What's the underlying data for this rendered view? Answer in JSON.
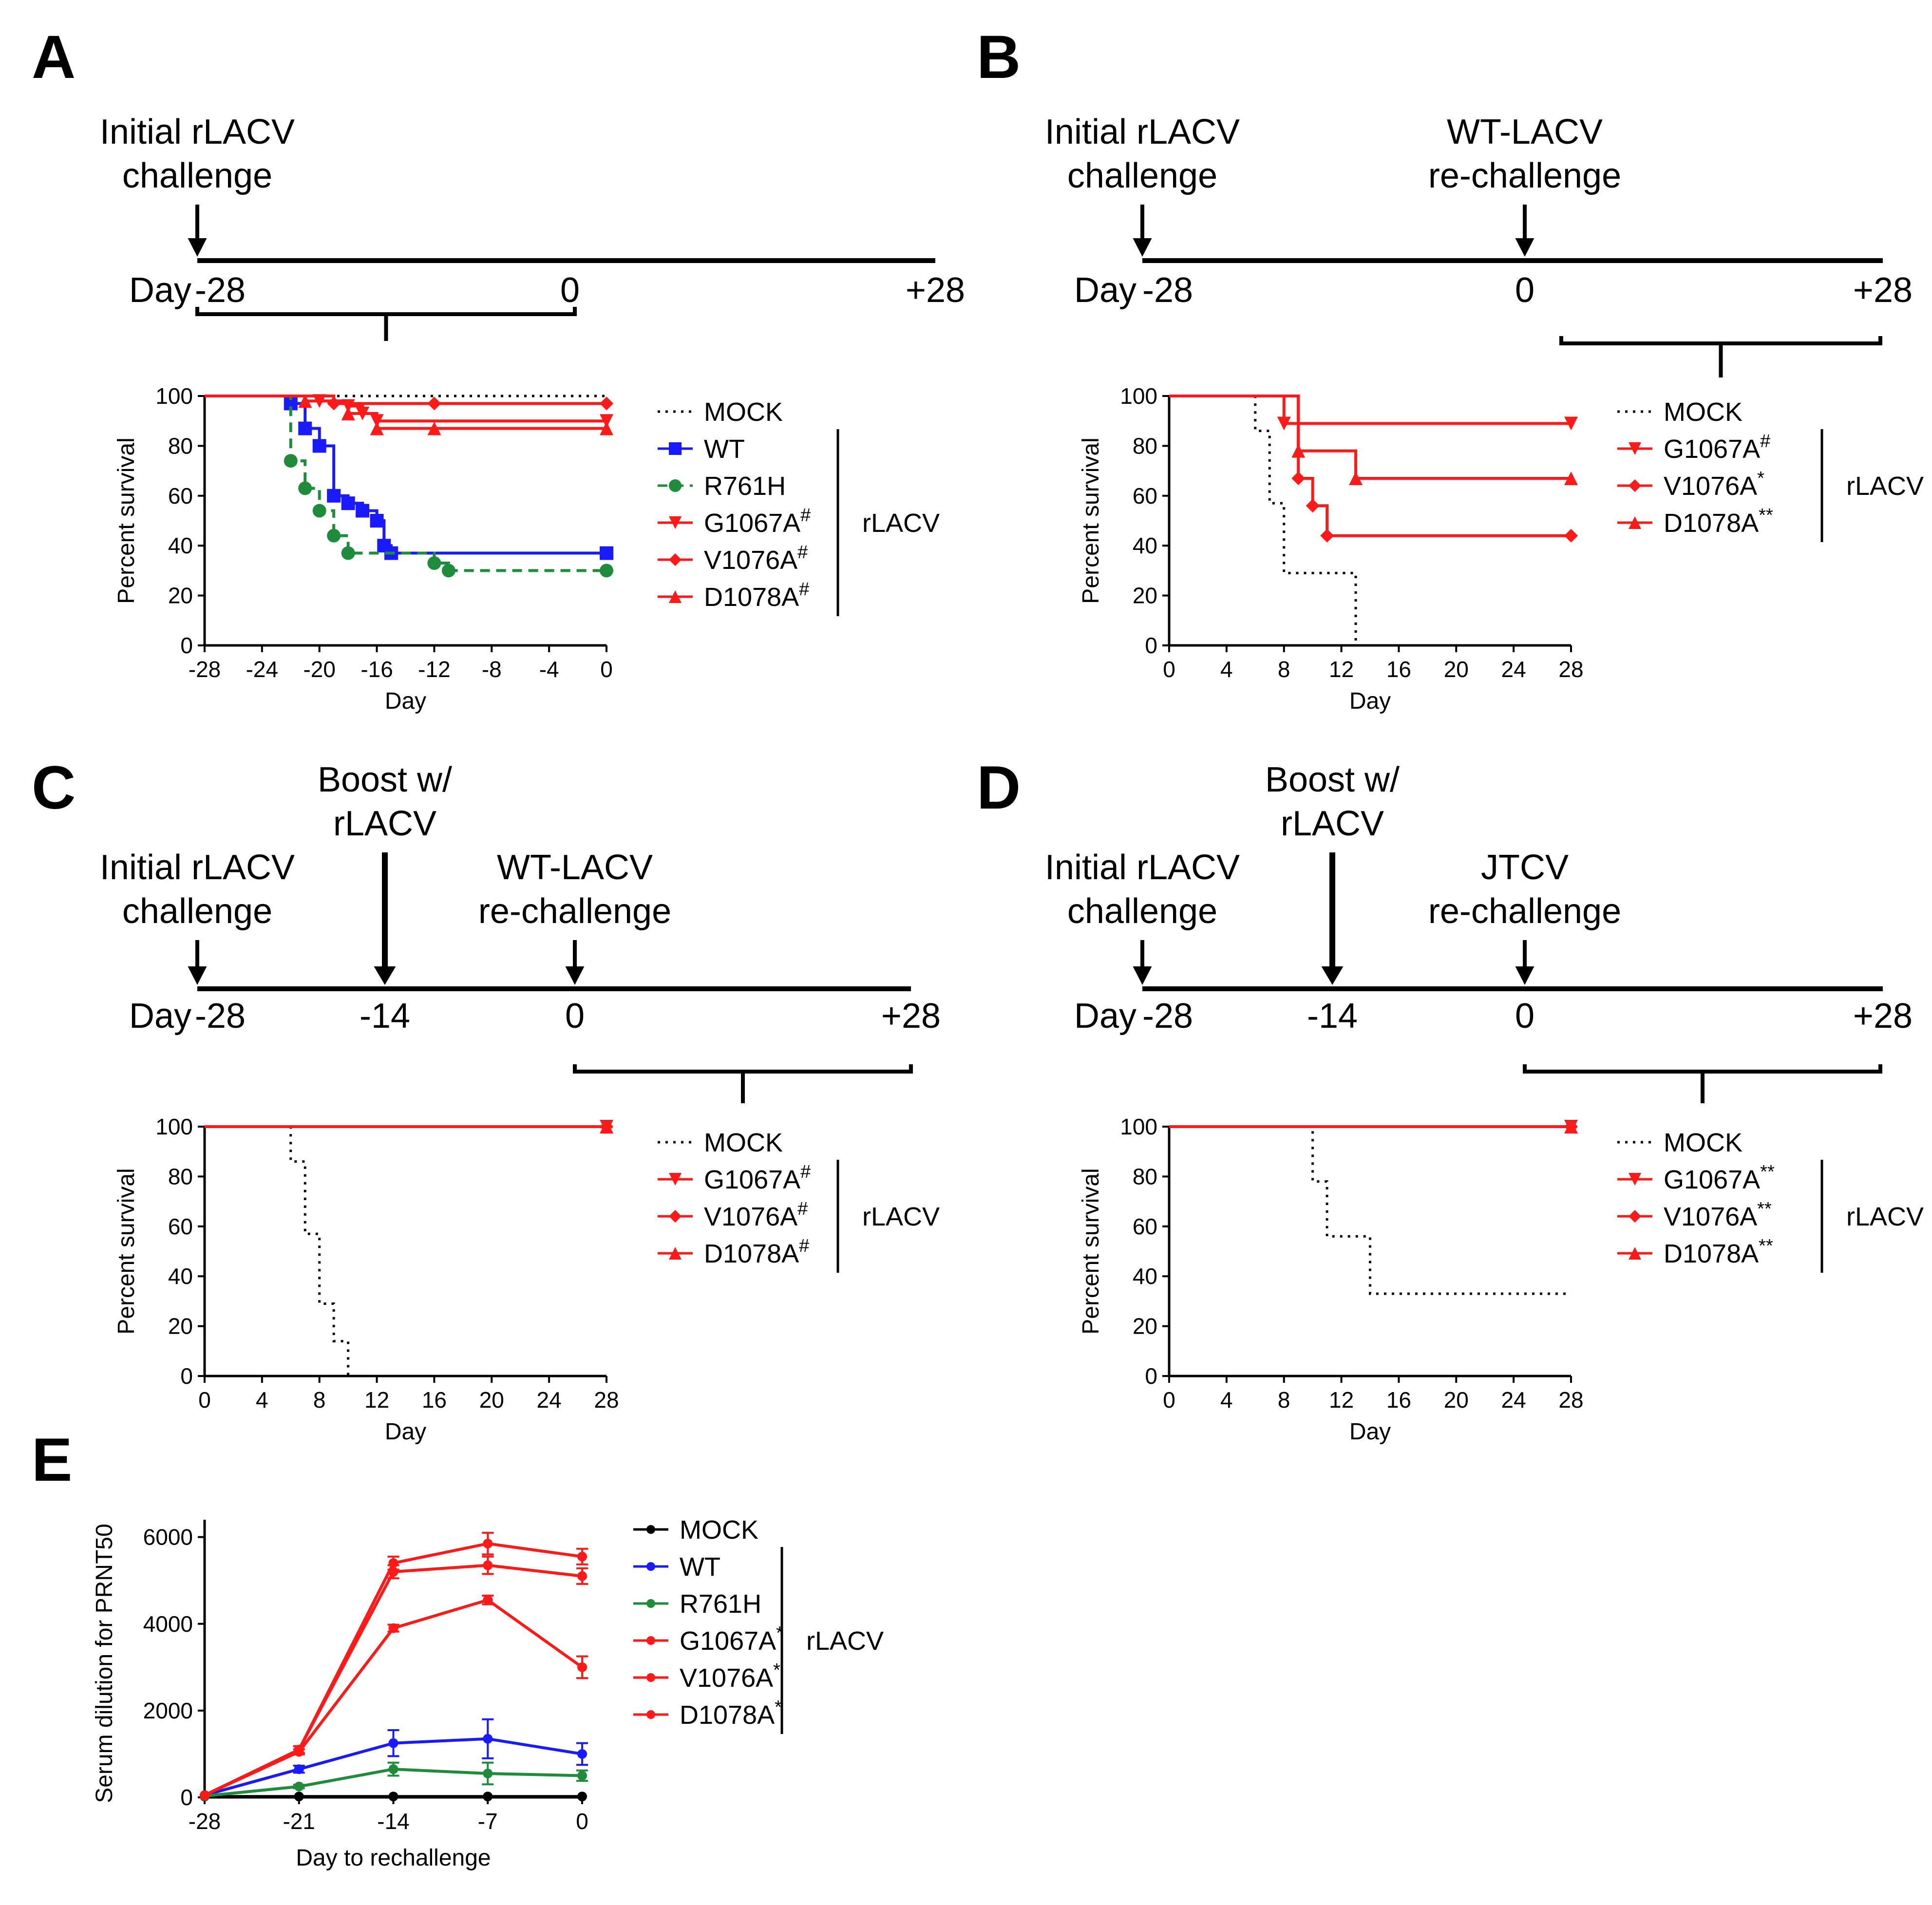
{
  "figure": {
    "panels": [
      {
        "letter": "A",
        "timeline": {
          "events": [
            {
              "label1": "Initial rLACV",
              "label2": "challenge"
            }
          ],
          "day_prefix": "Day",
          "ticks": [
            "-28",
            "0",
            "+28"
          ]
        },
        "legend": {
          "entries": [
            {
              "label": "MOCK",
              "sup": ""
            },
            {
              "label": "WT",
              "sup": ""
            },
            {
              "label": "R761H",
              "sup": ""
            },
            {
              "label": "G1067A",
              "sup": "#"
            },
            {
              "label": "V1076A",
              "sup": "#"
            },
            {
              "label": "D1078A",
              "sup": "#"
            }
          ],
          "group_label": "rLACV"
        }
      },
      {
        "letter": "B",
        "timeline": {
          "events": [
            {
              "label1": "Initial rLACV",
              "label2": "challenge"
            },
            {
              "label1": "WT-LACV",
              "label2": "re-challenge"
            }
          ],
          "day_prefix": "Day",
          "ticks": [
            "-28",
            "0",
            "+28"
          ]
        },
        "legend": {
          "entries": [
            {
              "label": "MOCK",
              "sup": ""
            },
            {
              "label": "G1067A",
              "sup": "#"
            },
            {
              "label": "V1076A",
              "sup": "*"
            },
            {
              "label": "D1078A",
              "sup": "**"
            }
          ],
          "group_label": "rLACV"
        }
      },
      {
        "letter": "C",
        "timeline": {
          "events": [
            {
              "label1": "Initial rLACV",
              "label2": "challenge"
            },
            {
              "label1": "Boost w/",
              "label2": "rLACV"
            },
            {
              "label1": "WT-LACV",
              "label2": "re-challenge"
            }
          ],
          "day_prefix": "Day",
          "ticks": [
            "-28",
            "-14",
            "0",
            "+28"
          ]
        },
        "legend": {
          "entries": [
            {
              "label": "MOCK",
              "sup": ""
            },
            {
              "label": "G1067A",
              "sup": "#"
            },
            {
              "label": "V1076A",
              "sup": "#"
            },
            {
              "label": "D1078A",
              "sup": "#"
            }
          ],
          "group_label": "rLACV"
        }
      },
      {
        "letter": "D",
        "timeline": {
          "events": [
            {
              "label1": "Initial rLACV",
              "label2": "challenge"
            },
            {
              "label1": "Boost w/",
              "label2": "rLACV"
            },
            {
              "label1": "JTCV",
              "label2": "re-challenge"
            }
          ],
          "day_prefix": "Day",
          "ticks": [
            "-28",
            "-14",
            "0",
            "+28"
          ]
        },
        "legend": {
          "entries": [
            {
              "label": "MOCK",
              "sup": ""
            },
            {
              "label": "G1067A",
              "sup": "**"
            },
            {
              "label": "V1076A",
              "sup": "**"
            },
            {
              "label": "D1078A",
              "sup": "**"
            }
          ],
          "group_label": "rLACV"
        }
      },
      {
        "letter": "E",
        "legend": {
          "entries": [
            {
              "label": "MOCK",
              "sup": ""
            },
            {
              "label": "WT",
              "sup": ""
            },
            {
              "label": "R761H",
              "sup": ""
            },
            {
              "label": "G1067A",
              "sup": "*"
            },
            {
              "label": "V1076A",
              "sup": "*"
            },
            {
              "label": "D1078A",
              "sup": "*"
            }
          ],
          "group_label": "rLACV"
        }
      }
    ]
  },
  "colors": {
    "mock": "#000000",
    "wt": "#1a1aff",
    "r761h": "#1e8c3a",
    "mutant": "#ff1a1a",
    "axis": "#000000"
  },
  "chart_data": [
    {
      "panel": "A",
      "type": "line",
      "step": true,
      "xlabel": "Day",
      "ylabel": "Percent survival",
      "xlim": [
        -28,
        0
      ],
      "ylim": [
        0,
        100
      ],
      "xticks": [
        -28,
        -24,
        -20,
        -16,
        -12,
        -8,
        -4,
        0
      ],
      "xtick_labels": [
        "-28",
        "-24",
        "-20",
        "-16",
        "-12",
        "-8",
        "-4",
        "0"
      ],
      "yticks": [
        0,
        20,
        40,
        60,
        80,
        100
      ],
      "ytick_labels": [
        "0",
        "20",
        "40",
        "60",
        "80",
        "100"
      ],
      "series": [
        {
          "name": "MOCK",
          "style": "dotted",
          "marker": "none",
          "color_key": "mock",
          "points": [
            [
              -28,
              100
            ],
            [
              0,
              100
            ]
          ]
        },
        {
          "name": "WT",
          "style": "solid",
          "marker": "square",
          "color_key": "wt",
          "points": [
            [
              -28,
              100
            ],
            [
              -22,
              97
            ],
            [
              -21,
              87
            ],
            [
              -20,
              80
            ],
            [
              -19,
              60
            ],
            [
              -18,
              57
            ],
            [
              -17,
              54
            ],
            [
              -16,
              50
            ],
            [
              -15.5,
              40
            ],
            [
              -15,
              37
            ],
            [
              0,
              37
            ]
          ]
        },
        {
          "name": "R761H",
          "style": "dashed",
          "marker": "circle",
          "color_key": "r761h",
          "points": [
            [
              -28,
              100
            ],
            [
              -22,
              74
            ],
            [
              -21,
              63
            ],
            [
              -20,
              54
            ],
            [
              -19,
              44
            ],
            [
              -18,
              37
            ],
            [
              -12,
              33
            ],
            [
              -11,
              30
            ],
            [
              0,
              30
            ]
          ]
        },
        {
          "name": "G1067A",
          "style": "solid",
          "marker": "triangle-down",
          "color_key": "mutant",
          "points": [
            [
              -28,
              100
            ],
            [
              -20,
              98
            ],
            [
              -18,
              96
            ],
            [
              -17,
              93
            ],
            [
              -16,
              90
            ],
            [
              0,
              90
            ]
          ]
        },
        {
          "name": "V1076A",
          "style": "solid",
          "marker": "diamond",
          "color_key": "mutant",
          "points": [
            [
              -28,
              100
            ],
            [
              -19,
              97
            ],
            [
              -12,
              97
            ],
            [
              0,
              97
            ]
          ]
        },
        {
          "name": "D1078A",
          "style": "solid",
          "marker": "triangle-up",
          "color_key": "mutant",
          "points": [
            [
              -28,
              100
            ],
            [
              -21,
              98
            ],
            [
              -18,
              93
            ],
            [
              -16,
              87
            ],
            [
              -12,
              87
            ],
            [
              0,
              87
            ]
          ]
        }
      ]
    },
    {
      "panel": "B",
      "type": "line",
      "step": true,
      "xlabel": "Day",
      "ylabel": "Percent survival",
      "xlim": [
        0,
        28
      ],
      "ylim": [
        0,
        100
      ],
      "xticks": [
        0,
        4,
        8,
        12,
        16,
        20,
        24,
        28
      ],
      "xtick_labels": [
        "0",
        "4",
        "8",
        "12",
        "16",
        "20",
        "24",
        "28"
      ],
      "yticks": [
        0,
        20,
        40,
        60,
        80,
        100
      ],
      "ytick_labels": [
        "0",
        "20",
        "40",
        "60",
        "80",
        "100"
      ],
      "series": [
        {
          "name": "MOCK",
          "style": "dotted",
          "marker": "none",
          "color_key": "mock",
          "points": [
            [
              0,
              100
            ],
            [
              6,
              86
            ],
            [
              7,
              57
            ],
            [
              8,
              29
            ],
            [
              13,
              0
            ]
          ]
        },
        {
          "name": "G1067A",
          "style": "solid",
          "marker": "triangle-down",
          "color_key": "mutant",
          "points": [
            [
              0,
              100
            ],
            [
              8,
              89
            ],
            [
              28,
              89
            ]
          ]
        },
        {
          "name": "V1076A",
          "style": "solid",
          "marker": "diamond",
          "color_key": "mutant",
          "points": [
            [
              0,
              100
            ],
            [
              9,
              67
            ],
            [
              10,
              56
            ],
            [
              11,
              44
            ],
            [
              28,
              44
            ]
          ]
        },
        {
          "name": "D1078A",
          "style": "solid",
          "marker": "triangle-up",
          "color_key": "mutant",
          "points": [
            [
              0,
              100
            ],
            [
              9,
              78
            ],
            [
              13,
              67
            ],
            [
              28,
              67
            ]
          ]
        }
      ]
    },
    {
      "panel": "C",
      "type": "line",
      "step": true,
      "xlabel": "Day",
      "ylabel": "Percent survival",
      "xlim": [
        0,
        28
      ],
      "ylim": [
        0,
        100
      ],
      "xticks": [
        0,
        4,
        8,
        12,
        16,
        20,
        24,
        28
      ],
      "xtick_labels": [
        "0",
        "4",
        "8",
        "12",
        "16",
        "20",
        "24",
        "28"
      ],
      "yticks": [
        0,
        20,
        40,
        60,
        80,
        100
      ],
      "ytick_labels": [
        "0",
        "20",
        "40",
        "60",
        "80",
        "100"
      ],
      "series": [
        {
          "name": "MOCK",
          "style": "dotted",
          "marker": "none",
          "color_key": "mock",
          "points": [
            [
              0,
              100
            ],
            [
              6,
              86
            ],
            [
              7,
              57
            ],
            [
              8,
              29
            ],
            [
              9,
              14
            ],
            [
              10,
              0
            ]
          ]
        },
        {
          "name": "G1067A",
          "style": "solid",
          "marker": "triangle-down",
          "color_key": "mutant",
          "points": [
            [
              0,
              100
            ],
            [
              28,
              100
            ]
          ]
        },
        {
          "name": "V1076A",
          "style": "solid",
          "marker": "diamond",
          "color_key": "mutant",
          "points": [
            [
              0,
              100
            ],
            [
              28,
              100
            ]
          ]
        },
        {
          "name": "D1078A",
          "style": "solid",
          "marker": "triangle-up",
          "color_key": "mutant",
          "points": [
            [
              0,
              100
            ],
            [
              28,
              100
            ]
          ]
        }
      ]
    },
    {
      "panel": "D",
      "type": "line",
      "step": true,
      "xlabel": "Day",
      "ylabel": "Percent survival",
      "xlim": [
        0,
        28
      ],
      "ylim": [
        0,
        100
      ],
      "xticks": [
        0,
        4,
        8,
        12,
        16,
        20,
        24,
        28
      ],
      "xtick_labels": [
        "0",
        "4",
        "8",
        "12",
        "16",
        "20",
        "24",
        "28"
      ],
      "yticks": [
        0,
        20,
        40,
        60,
        80,
        100
      ],
      "ytick_labels": [
        "0",
        "20",
        "40",
        "60",
        "80",
        "100"
      ],
      "series": [
        {
          "name": "MOCK",
          "style": "dotted",
          "marker": "none",
          "color_key": "mock",
          "points": [
            [
              0,
              100
            ],
            [
              10,
              78
            ],
            [
              11,
              56
            ],
            [
              14,
              33
            ],
            [
              28,
              33
            ]
          ]
        },
        {
          "name": "G1067A",
          "style": "solid",
          "marker": "triangle-down",
          "color_key": "mutant",
          "points": [
            [
              0,
              100
            ],
            [
              28,
              100
            ]
          ]
        },
        {
          "name": "V1076A",
          "style": "solid",
          "marker": "diamond",
          "color_key": "mutant",
          "points": [
            [
              0,
              100
            ],
            [
              28,
              100
            ]
          ]
        },
        {
          "name": "D1078A",
          "style": "solid",
          "marker": "triangle-up",
          "color_key": "mutant",
          "points": [
            [
              0,
              100
            ],
            [
              28,
              100
            ]
          ]
        }
      ]
    },
    {
      "panel": "E",
      "type": "line",
      "step": false,
      "xlabel": "Day to rechallenge",
      "ylabel": "Serum dilution for PRNT50",
      "xlim": [
        -28,
        0
      ],
      "ylim": [
        0,
        6400
      ],
      "x": [
        -28,
        -21,
        -14,
        -7,
        0
      ],
      "xticks": [
        -28,
        -21,
        -14,
        -7,
        0
      ],
      "xtick_labels": [
        "-28",
        "-21",
        "-14",
        "-7",
        "0"
      ],
      "yticks": [
        0,
        2000,
        4000,
        6000
      ],
      "ytick_labels": [
        "0",
        "2000",
        "4000",
        "6000"
      ],
      "series": [
        {
          "name": "MOCK",
          "color_key": "mock",
          "marker": "circle",
          "values": [
            20,
            20,
            20,
            20,
            20
          ],
          "errors": [
            0,
            0,
            0,
            0,
            0
          ]
        },
        {
          "name": "WT",
          "color_key": "wt",
          "marker": "circle",
          "values": [
            50,
            650,
            1250,
            1350,
            1000
          ],
          "errors": [
            0,
            80,
            300,
            450,
            250
          ]
        },
        {
          "name": "R761H",
          "color_key": "r761h",
          "marker": "circle",
          "values": [
            30,
            250,
            650,
            550,
            500
          ],
          "errors": [
            0,
            40,
            150,
            250,
            120
          ]
        },
        {
          "name": "G1067A",
          "color_key": "mutant",
          "marker": "circle",
          "values": [
            50,
            1100,
            5400,
            5850,
            5550
          ],
          "errors": [
            0,
            80,
            150,
            250,
            180
          ]
        },
        {
          "name": "V1076A",
          "color_key": "mutant",
          "marker": "circle",
          "values": [
            50,
            1100,
            5200,
            5350,
            5100
          ],
          "errors": [
            0,
            80,
            150,
            200,
            180
          ]
        },
        {
          "name": "D1078A",
          "color_key": "mutant",
          "marker": "circle",
          "values": [
            50,
            1050,
            3900,
            4550,
            3000
          ],
          "errors": [
            0,
            60,
            80,
            100,
            250
          ]
        }
      ]
    }
  ]
}
